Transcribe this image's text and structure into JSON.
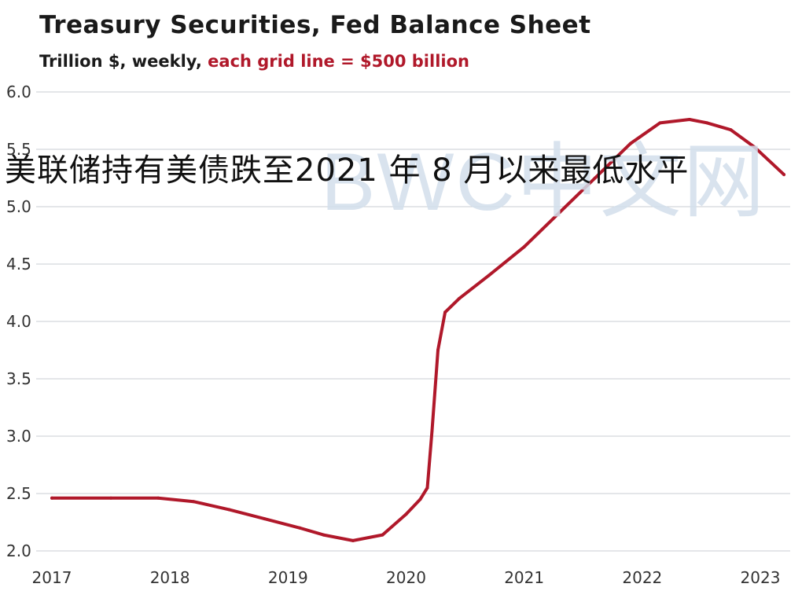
{
  "header": {
    "title": "Treasury  Securities,  Fed Balance  Sheet",
    "subtitle_prefix": "Trillion $, weekly, ",
    "subtitle_highlight": "each grid line = $500 billion"
  },
  "watermark": "BWC中文网",
  "overlay_caption": "美联储持有美债跌至2021 年 8 月以来最低水平",
  "colors": {
    "line": "#b0182a",
    "grid": "#c8cdd3",
    "subtitle_highlight": "#b0182a"
  },
  "chart_data": {
    "type": "line",
    "title": "Treasury  Securities,  Fed Balance  Sheet",
    "ylabel": "Trillion $",
    "ylim": [
      2.0,
      6.0
    ],
    "y_ticks": [
      "2.0",
      "2.5",
      "3.0",
      "3.5",
      "4.0",
      "4.5",
      "5.0",
      "5.5",
      "6.0"
    ],
    "x_ticks": [
      "2017",
      "2018",
      "2019",
      "2020",
      "2021",
      "2022",
      "2023"
    ],
    "grid": true,
    "legend": "none",
    "series": [
      {
        "x": [
          2017.0,
          2017.5,
          2017.9,
          2018.2,
          2018.5,
          2018.8,
          2019.1,
          2019.3,
          2019.55,
          2019.8,
          2020.0,
          2020.12,
          2020.18,
          2020.22,
          2020.27,
          2020.33,
          2020.45,
          2020.7,
          2021.0,
          2021.3,
          2021.6,
          2021.9,
          2022.15,
          2022.4,
          2022.55,
          2022.75,
          2022.95,
          2023.2
        ],
        "values": [
          2.46,
          2.46,
          2.46,
          2.43,
          2.36,
          2.28,
          2.2,
          2.14,
          2.09,
          2.14,
          2.32,
          2.45,
          2.55,
          3.05,
          3.75,
          4.08,
          4.2,
          4.4,
          4.65,
          4.95,
          5.25,
          5.55,
          5.73,
          5.76,
          5.73,
          5.67,
          5.52,
          5.28
        ]
      }
    ]
  }
}
